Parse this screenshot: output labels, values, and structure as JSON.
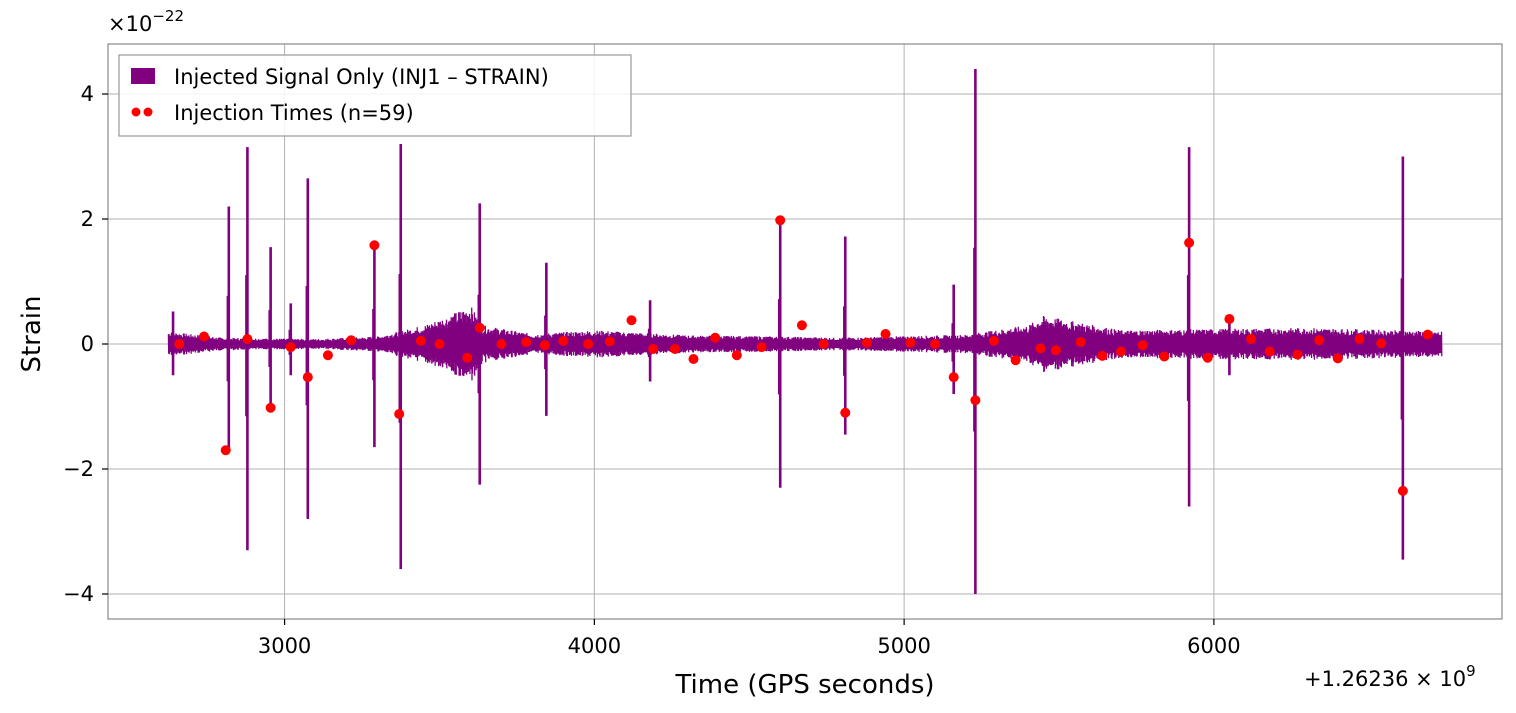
{
  "chart_data": {
    "type": "line",
    "title": "",
    "xlabel": "Time (GPS seconds)",
    "ylabel": "Strain",
    "x_offset_label": "+1.26236",
    "x_offset_exp": "9",
    "y_scale_label": "×10",
    "y_scale_exp": "−22",
    "xlim": [
      2430,
      6930
    ],
    "ylim": [
      -4.4,
      4.8
    ],
    "xticks": [
      3000,
      4000,
      5000,
      6000
    ],
    "xtick_labels": [
      "3000",
      "4000",
      "5000",
      "6000"
    ],
    "yticks": [
      -4,
      -2,
      0,
      2,
      4
    ],
    "ytick_labels": [
      "−4",
      "−2",
      "0",
      "2",
      "4"
    ],
    "grid": true,
    "legend_position": "top-left",
    "colors": {
      "signal": "#800080",
      "injection": "#ff0000"
    },
    "series": [
      {
        "name": "Injected Signal Only (INJ1 – STRAIN)",
        "kind": "line",
        "x_range": [
          2625,
          6735
        ],
        "baseline_envelope": [
          [
            2625,
            0.2
          ],
          [
            2800,
            0.1
          ],
          [
            3100,
            0.08
          ],
          [
            3300,
            0.12
          ],
          [
            3450,
            0.3
          ],
          [
            3550,
            0.5
          ],
          [
            3600,
            0.62
          ],
          [
            3640,
            0.3
          ],
          [
            3800,
            0.16
          ],
          [
            4000,
            0.22
          ],
          [
            4300,
            0.14
          ],
          [
            4600,
            0.12
          ],
          [
            4800,
            0.1
          ],
          [
            5200,
            0.15
          ],
          [
            5400,
            0.3
          ],
          [
            5450,
            0.45
          ],
          [
            5700,
            0.22
          ],
          [
            6000,
            0.24
          ],
          [
            6300,
            0.26
          ],
          [
            6735,
            0.2
          ]
        ],
        "spikes": [
          [
            2640,
            0.52,
            -0.5
          ],
          [
            2820,
            2.2,
            -1.7
          ],
          [
            2880,
            3.15,
            -3.3
          ],
          [
            2955,
            1.55,
            -1.05
          ],
          [
            3020,
            0.65,
            -0.5
          ],
          [
            3075,
            2.65,
            -2.8
          ],
          [
            3290,
            1.6,
            -1.65
          ],
          [
            3375,
            3.2,
            -3.6
          ],
          [
            3630,
            2.25,
            -2.25
          ],
          [
            3845,
            1.3,
            -1.15
          ],
          [
            4180,
            0.7,
            -0.6
          ],
          [
            4600,
            2.05,
            -2.3
          ],
          [
            4810,
            1.72,
            -1.45
          ],
          [
            5160,
            0.95,
            -0.8
          ],
          [
            5230,
            4.4,
            -4.0
          ],
          [
            5920,
            3.15,
            -2.6
          ],
          [
            6050,
            0.45,
            -0.5
          ],
          [
            6610,
            3.0,
            -3.45
          ]
        ]
      },
      {
        "name": "Injection Times (n=59)",
        "kind": "scatter",
        "points": [
          [
            2660,
            0.0
          ],
          [
            2740,
            0.12
          ],
          [
            2810,
            -1.7
          ],
          [
            2880,
            0.08
          ],
          [
            2955,
            -1.02
          ],
          [
            3020,
            -0.05
          ],
          [
            3075,
            -0.53
          ],
          [
            3140,
            -0.18
          ],
          [
            3215,
            0.06
          ],
          [
            3290,
            1.58
          ],
          [
            3370,
            -1.12
          ],
          [
            3440,
            0.05
          ],
          [
            3500,
            0.0
          ],
          [
            3590,
            -0.22
          ],
          [
            3630,
            0.26
          ],
          [
            3700,
            0.0
          ],
          [
            3780,
            0.03
          ],
          [
            3840,
            -0.02
          ],
          [
            3900,
            0.05
          ],
          [
            3980,
            0.0
          ],
          [
            4050,
            0.04
          ],
          [
            4120,
            0.38
          ],
          [
            4190,
            -0.08
          ],
          [
            4260,
            -0.08
          ],
          [
            4320,
            -0.24
          ],
          [
            4390,
            0.1
          ],
          [
            4460,
            -0.18
          ],
          [
            4540,
            -0.05
          ],
          [
            4600,
            1.98
          ],
          [
            4670,
            0.3
          ],
          [
            4740,
            0.0
          ],
          [
            4810,
            -1.1
          ],
          [
            4880,
            0.02
          ],
          [
            4940,
            0.16
          ],
          [
            5020,
            0.02
          ],
          [
            5100,
            0.0
          ],
          [
            5160,
            -0.53
          ],
          [
            5230,
            -0.9
          ],
          [
            5290,
            0.05
          ],
          [
            5360,
            -0.26
          ],
          [
            5440,
            -0.07
          ],
          [
            5490,
            -0.1
          ],
          [
            5570,
            0.03
          ],
          [
            5640,
            -0.19
          ],
          [
            5700,
            -0.12
          ],
          [
            5770,
            -0.02
          ],
          [
            5840,
            -0.2
          ],
          [
            5920,
            1.62
          ],
          [
            5980,
            -0.22
          ],
          [
            6050,
            0.4
          ],
          [
            6120,
            0.08
          ],
          [
            6180,
            -0.12
          ],
          [
            6270,
            -0.17
          ],
          [
            6340,
            0.06
          ],
          [
            6400,
            -0.23
          ],
          [
            6470,
            0.08
          ],
          [
            6540,
            0.01
          ],
          [
            6610,
            -2.35
          ],
          [
            6690,
            0.15
          ]
        ]
      }
    ]
  }
}
